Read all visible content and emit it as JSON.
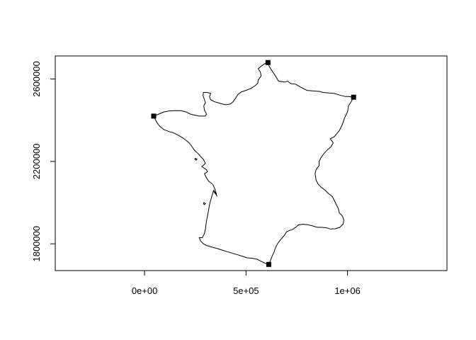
{
  "chart_data": {
    "type": "map",
    "title": "",
    "xlabel": "",
    "ylabel": "",
    "xlim": [
      -440000,
      1490000
    ],
    "ylim": [
      1670000,
      2712000
    ],
    "x_ticks": [
      {
        "value": 0,
        "label": "0e+00"
      },
      {
        "value": 500000,
        "label": "5e+05"
      },
      {
        "value": 1000000,
        "label": "1e+06"
      }
    ],
    "y_ticks": [
      {
        "value": 1800000,
        "label": "1800000"
      },
      {
        "value": 2200000,
        "label": "2200000"
      },
      {
        "value": 2600000,
        "label": "2600000"
      }
    ],
    "extreme_points": [
      {
        "name": "north",
        "x": 608000,
        "y": 2680000
      },
      {
        "name": "east",
        "x": 1030000,
        "y": 2512000
      },
      {
        "name": "south",
        "x": 612000,
        "y": 1700000
      },
      {
        "name": "west",
        "x": 45000,
        "y": 2420000
      }
    ],
    "outline": [
      [
        608000,
        2680000
      ],
      [
        615000,
        2660000
      ],
      [
        628000,
        2640000
      ],
      [
        645000,
        2615000
      ],
      [
        660000,
        2590000
      ],
      [
        690000,
        2585000
      ],
      [
        705000,
        2590000
      ],
      [
        720000,
        2578000
      ],
      [
        745000,
        2575000
      ],
      [
        770000,
        2560000
      ],
      [
        800000,
        2545000
      ],
      [
        830000,
        2542000
      ],
      [
        860000,
        2540000
      ],
      [
        880000,
        2535000
      ],
      [
        905000,
        2532000
      ],
      [
        935000,
        2530000
      ],
      [
        960000,
        2522000
      ],
      [
        990000,
        2515000
      ],
      [
        1005000,
        2515000
      ],
      [
        1030000,
        2512000
      ],
      [
        1018000,
        2490000
      ],
      [
        1005000,
        2470000
      ],
      [
        1000000,
        2440000
      ],
      [
        985000,
        2410000
      ],
      [
        975000,
        2380000
      ],
      [
        960000,
        2350000
      ],
      [
        935000,
        2320000
      ],
      [
        915000,
        2310000
      ],
      [
        930000,
        2290000
      ],
      [
        918000,
        2270000
      ],
      [
        900000,
        2255000
      ],
      [
        885000,
        2240000
      ],
      [
        870000,
        2220000
      ],
      [
        860000,
        2200000
      ],
      [
        860000,
        2180000
      ],
      [
        845000,
        2160000
      ],
      [
        840000,
        2140000
      ],
      [
        845000,
        2110000
      ],
      [
        855000,
        2090000
      ],
      [
        870000,
        2075000
      ],
      [
        890000,
        2060000
      ],
      [
        905000,
        2045000
      ],
      [
        925000,
        2030000
      ],
      [
        935000,
        2010000
      ],
      [
        945000,
        1990000
      ],
      [
        955000,
        1970000
      ],
      [
        960000,
        1950000
      ],
      [
        975000,
        1935000
      ],
      [
        982000,
        1915000
      ],
      [
        978000,
        1895000
      ],
      [
        962000,
        1880000
      ],
      [
        940000,
        1873000
      ],
      [
        915000,
        1872000
      ],
      [
        895000,
        1878000
      ],
      [
        870000,
        1880000
      ],
      [
        850000,
        1880000
      ],
      [
        828000,
        1887000
      ],
      [
        805000,
        1893000
      ],
      [
        780000,
        1895000
      ],
      [
        760000,
        1893000
      ],
      [
        745000,
        1880000
      ],
      [
        730000,
        1870000
      ],
      [
        715000,
        1865000
      ],
      [
        700000,
        1858000
      ],
      [
        688000,
        1840000
      ],
      [
        670000,
        1820000
      ],
      [
        655000,
        1800000
      ],
      [
        645000,
        1780000
      ],
      [
        638000,
        1760000
      ],
      [
        628000,
        1738000
      ],
      [
        620000,
        1718000
      ],
      [
        612000,
        1700000
      ],
      [
        595000,
        1705000
      ],
      [
        575000,
        1715000
      ],
      [
        555000,
        1725000
      ],
      [
        530000,
        1730000
      ],
      [
        505000,
        1732000
      ],
      [
        480000,
        1740000
      ],
      [
        455000,
        1748000
      ],
      [
        430000,
        1755000
      ],
      [
        405000,
        1762000
      ],
      [
        380000,
        1770000
      ],
      [
        355000,
        1778000
      ],
      [
        330000,
        1785000
      ],
      [
        305000,
        1792000
      ],
      [
        290000,
        1800000
      ],
      [
        275000,
        1815000
      ],
      [
        270000,
        1830000
      ],
      [
        285000,
        1830000
      ],
      [
        295000,
        1850000
      ],
      [
        300000,
        1870000
      ],
      [
        302000,
        1890000
      ],
      [
        305000,
        1910000
      ],
      [
        309000,
        1930000
      ],
      [
        315000,
        1960000
      ],
      [
        320000,
        1990000
      ],
      [
        328000,
        2020000
      ],
      [
        336000,
        2045000
      ],
      [
        340000,
        2060000
      ],
      [
        355000,
        2040000
      ],
      [
        345000,
        2070000
      ],
      [
        335000,
        2090000
      ],
      [
        315000,
        2105000
      ],
      [
        305000,
        2120000
      ],
      [
        295000,
        2140000
      ],
      [
        310000,
        2150000
      ],
      [
        305000,
        2160000
      ],
      [
        282000,
        2175000
      ],
      [
        300000,
        2190000
      ],
      [
        290000,
        2210000
      ],
      [
        275000,
        2225000
      ],
      [
        262000,
        2240000
      ],
      [
        245000,
        2255000
      ],
      [
        235000,
        2270000
      ],
      [
        220000,
        2290000
      ],
      [
        195000,
        2310000
      ],
      [
        170000,
        2325000
      ],
      [
        145000,
        2338000
      ],
      [
        120000,
        2345000
      ],
      [
        95000,
        2355000
      ],
      [
        75000,
        2370000
      ],
      [
        60000,
        2390000
      ],
      [
        45000,
        2420000
      ],
      [
        70000,
        2430000
      ],
      [
        95000,
        2440000
      ],
      [
        120000,
        2445000
      ],
      [
        150000,
        2447000
      ],
      [
        180000,
        2446000
      ],
      [
        205000,
        2440000
      ],
      [
        225000,
        2430000
      ],
      [
        245000,
        2425000
      ],
      [
        270000,
        2420000
      ],
      [
        300000,
        2420000
      ],
      [
        305000,
        2430000
      ],
      [
        295000,
        2450000
      ],
      [
        292000,
        2470000
      ],
      [
        300000,
        2485000
      ],
      [
        295000,
        2500000
      ],
      [
        288000,
        2520000
      ],
      [
        290000,
        2535000
      ],
      [
        308000,
        2535000
      ],
      [
        326000,
        2530000
      ],
      [
        320000,
        2515000
      ],
      [
        325000,
        2500000
      ],
      [
        345000,
        2490000
      ],
      [
        372000,
        2482000
      ],
      [
        398000,
        2475000
      ],
      [
        422000,
        2478000
      ],
      [
        436000,
        2490000
      ],
      [
        447000,
        2505000
      ],
      [
        460000,
        2525000
      ],
      [
        478000,
        2538000
      ],
      [
        500000,
        2545000
      ],
      [
        525000,
        2555000
      ],
      [
        545000,
        2568000
      ],
      [
        558000,
        2580000
      ],
      [
        560000,
        2595000
      ],
      [
        575000,
        2615000
      ],
      [
        570000,
        2635000
      ],
      [
        560000,
        2650000
      ],
      [
        578000,
        2665000
      ],
      [
        595000,
        2676000
      ],
      [
        608000,
        2680000
      ]
    ],
    "islands": [
      [
        [
          340000,
          2055000
        ],
        [
          352000,
          2040000
        ],
        [
          358000,
          2030000
        ],
        [
          350000,
          2045000
        ],
        [
          340000,
          2055000
        ]
      ],
      [
        [
          292000,
          2000000
        ],
        [
          300000,
          1995000
        ],
        [
          295000,
          1990000
        ],
        [
          290000,
          1995000
        ],
        [
          292000,
          2000000
        ]
      ],
      [
        [
          250000,
          2215000
        ],
        [
          258000,
          2212000
        ],
        [
          254000,
          2206000
        ],
        [
          248000,
          2210000
        ],
        [
          250000,
          2215000
        ]
      ]
    ]
  }
}
